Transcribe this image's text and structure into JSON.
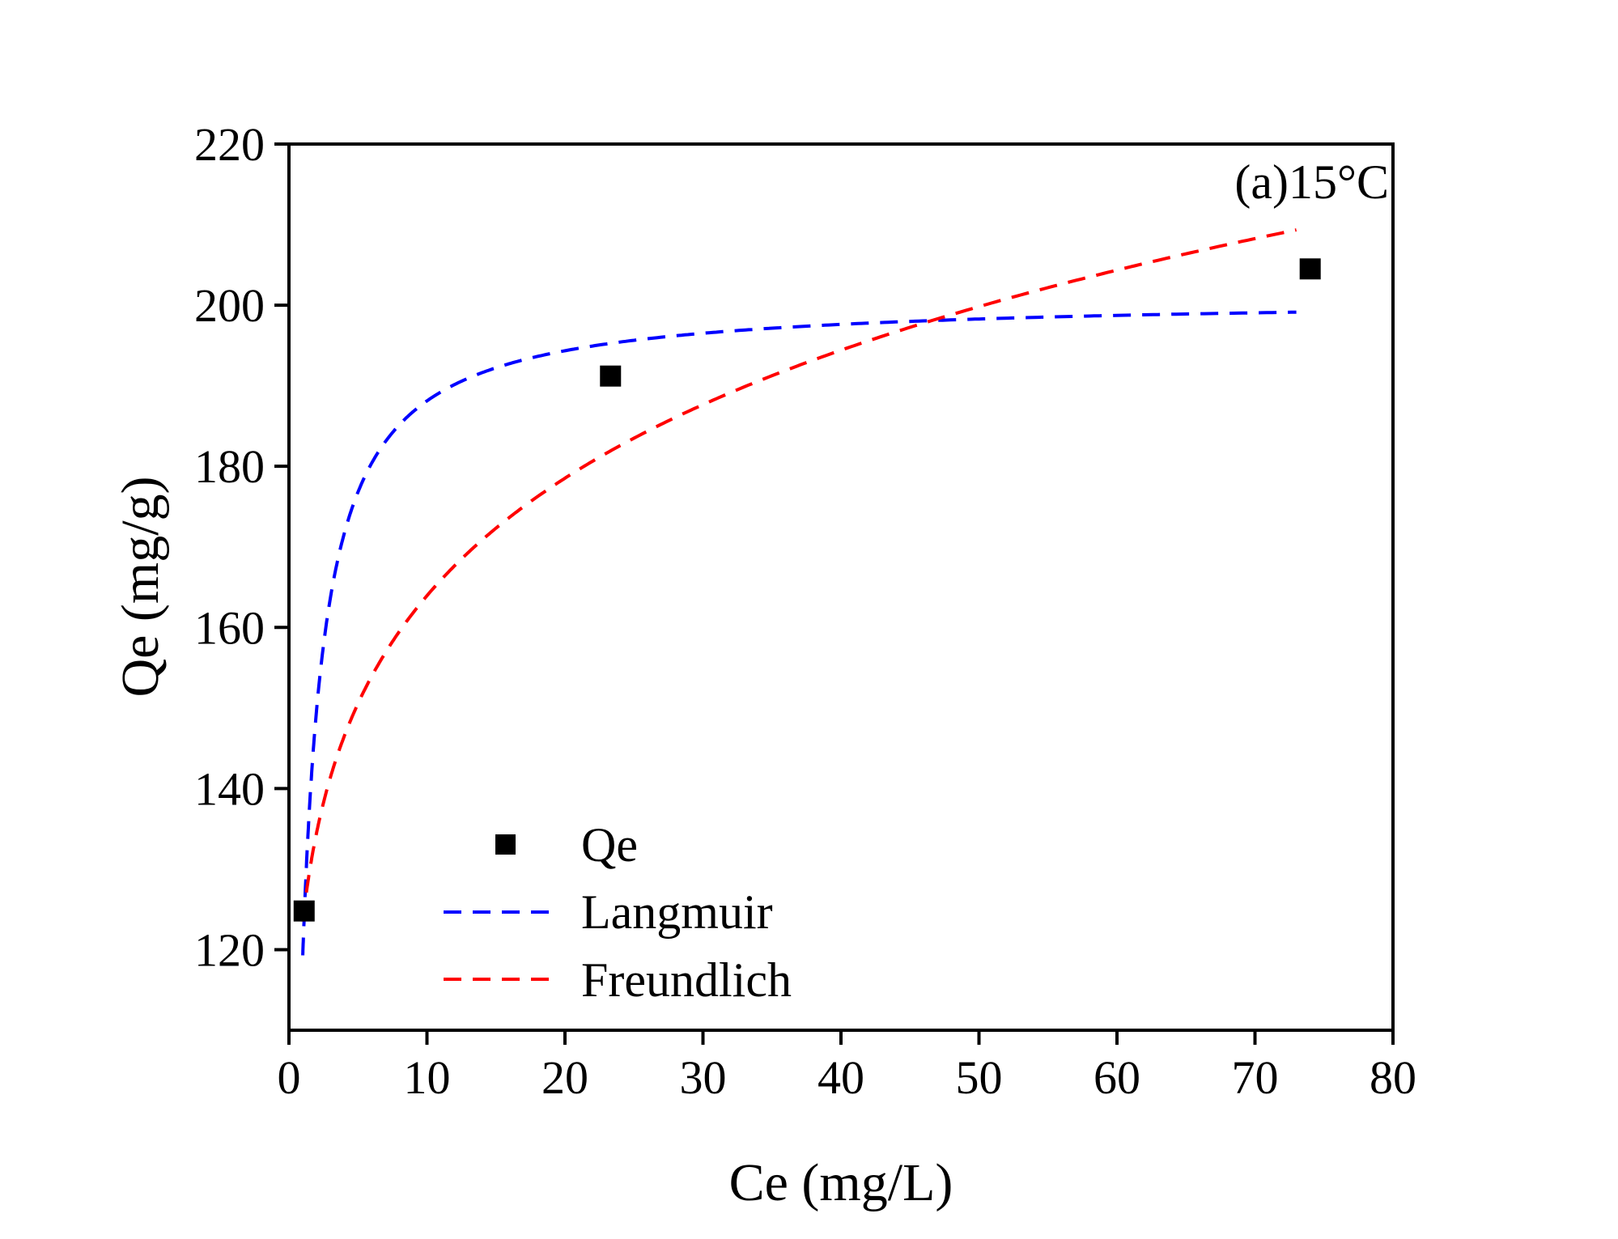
{
  "chart_data": {
    "type": "scatter",
    "xlabel": "Ce (mg/L)",
    "ylabel": "Qe (mg/g)",
    "annotation": "(a)15°C",
    "xlim": [
      0,
      80
    ],
    "ylim": [
      110,
      220
    ],
    "xticks": [
      0,
      10,
      20,
      30,
      40,
      50,
      60,
      70,
      80
    ],
    "yticks": [
      120,
      140,
      160,
      180,
      200,
      220
    ],
    "grid": false,
    "legend_placement": "bottom-left",
    "series": [
      {
        "name": "Qe",
        "kind": "scatter",
        "color": "#000000",
        "x": [
          1.1,
          23.3,
          74.0
        ],
        "y": [
          124.8,
          191.2,
          204.5
        ]
      },
      {
        "name": "Langmuir",
        "kind": "dashed-line",
        "color": "#0000ff",
        "model": {
          "qm": 201,
          "KL": 1.46
        },
        "x_range": [
          1,
          73
        ]
      },
      {
        "name": "Freundlich",
        "kind": "dashed-line",
        "color": "#ff0000",
        "model": {
          "KF": 123.5,
          "n_inv": 0.123
        },
        "x_range": [
          1,
          73
        ]
      }
    ]
  }
}
